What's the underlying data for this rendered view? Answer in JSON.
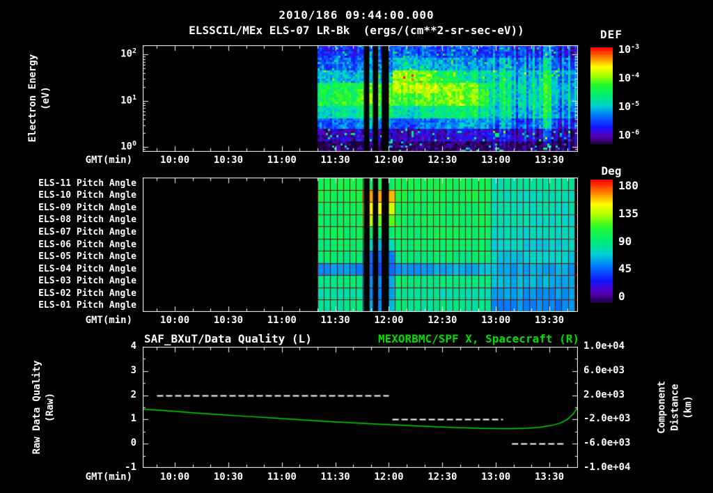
{
  "header": {
    "timestamp": "2010/186 09:44:00.000",
    "title": "ELSSCIL/MEx ELS-07 LR-Bk  (ergs/(cm**2-sr-sec-eV))"
  },
  "colors": {
    "background": "#000000",
    "text": "#ffffff",
    "series_green": "#00dd00",
    "heatmap_grid_red": "#6f1400",
    "quality_dash_white": "#ffffff"
  },
  "time_axis": {
    "label": "GMT(min)",
    "start_min": 582,
    "end_min": 826,
    "minor_tick_step_min": 10,
    "ticks": [
      {
        "min": 600,
        "label": "10:00"
      },
      {
        "min": 630,
        "label": "10:30"
      },
      {
        "min": 660,
        "label": "11:00"
      },
      {
        "min": 690,
        "label": "11:30"
      },
      {
        "min": 720,
        "label": "12:00"
      },
      {
        "min": 750,
        "label": "12:30"
      },
      {
        "min": 780,
        "label": "13:00"
      },
      {
        "min": 810,
        "label": "13:30"
      }
    ]
  },
  "panels": {
    "spectrogram": {
      "y_axis_label": "Electron Energy\n(eV)",
      "y_log_range": [
        -0.1,
        2.2
      ],
      "y_ticks": [
        {
          "log": 0,
          "base": "10",
          "exp": "0"
        },
        {
          "log": 1,
          "base": "10",
          "exp": "1"
        },
        {
          "log": 2,
          "base": "10",
          "exp": "2"
        }
      ]
    },
    "pitch": {
      "row_labels": [
        "ELS-11 Pitch Angle",
        "ELS-10 Pitch Angle",
        "ELS-09 Pitch Angle",
        "ELS-08 Pitch Angle",
        "ELS-07 Pitch Angle",
        "ELS-06 Pitch Angle",
        "ELS-05 Pitch Angle",
        "ELS-04 Pitch Angle",
        "ELS-03 Pitch Angle",
        "ELS-02 Pitch Angle",
        "ELS-01 Pitch Angle"
      ]
    },
    "bottom": {
      "left_title": "SAF_BXuT/Data Quality (L)",
      "right_title": "MEXORBMC/SPF X, Spacecraft (R)",
      "left_axis_label": "Raw Data Quality\n(Raw)",
      "right_axis_label": "Component Distance\n(km)",
      "left_range": [
        -1,
        4
      ],
      "right_range_km": [
        -10000,
        10000
      ],
      "left_ticks": [
        {
          "value": 4,
          "label": "4"
        },
        {
          "value": 3,
          "label": "3"
        },
        {
          "value": 2,
          "label": "2"
        },
        {
          "value": 1,
          "label": "1"
        },
        {
          "value": 0,
          "label": "0"
        },
        {
          "value": -1,
          "label": "-1"
        }
      ],
      "right_ticks": [
        {
          "km": 10000,
          "label": "1.0e+04"
        },
        {
          "km": 6000,
          "label": "6.0e+03"
        },
        {
          "km": 2000,
          "label": "2.0e+03"
        },
        {
          "km": -2000,
          "label": "-2.0e+03"
        },
        {
          "km": -6000,
          "label": "-6.0e+03"
        },
        {
          "km": -10000,
          "label": "-1.0e+04"
        }
      ]
    }
  },
  "colorbars": {
    "def": {
      "title": "DEF",
      "log_range": [
        -6.3,
        -2.9
      ],
      "ticks": [
        {
          "log": -3,
          "base": "10",
          "exp": "-3"
        },
        {
          "log": -4,
          "base": "10",
          "exp": "-4"
        },
        {
          "log": -5,
          "base": "10",
          "exp": "-5"
        },
        {
          "log": -6,
          "base": "10",
          "exp": "-6"
        }
      ]
    },
    "deg": {
      "title": "Deg",
      "value_range": [
        -10,
        190
      ],
      "ticks": [
        {
          "value": 180,
          "label": "180"
        },
        {
          "value": 135,
          "label": "135"
        },
        {
          "value": 90,
          "label": "90"
        },
        {
          "value": 45,
          "label": "45"
        },
        {
          "value": 0,
          "label": "0"
        }
      ]
    }
  },
  "chart_data": [
    {
      "type": "heatmap",
      "name": "electron_energy_spectrogram",
      "title": "ELSSCIL/MEx ELS-07 LR-Bk",
      "units": "ergs/(cm**2-sr-sec-eV)",
      "xlabel": "GMT(min)",
      "ylabel": "Electron Energy (eV)",
      "x_range_min": [
        582,
        826
      ],
      "y_log10_ev_range": [
        -0.1,
        2.2
      ],
      "color_scale_log10": [
        -6.3,
        -2.9
      ],
      "data_start_min": 680,
      "data_end_min": 824,
      "gaps_min": [
        [
          706,
          709
        ],
        [
          711,
          714
        ],
        [
          716,
          720
        ]
      ],
      "bin_width_min": 6,
      "t_bin_start_min": [
        680,
        686,
        692,
        698,
        704,
        710,
        716,
        722,
        728,
        734,
        740,
        746,
        752,
        758,
        764,
        770,
        776,
        782,
        788,
        794,
        800,
        806,
        812,
        818
      ],
      "energy_rows_log10_ev_bottom_to_top": [
        0.03,
        0.28,
        0.54,
        0.79,
        1.05,
        1.3,
        1.56,
        1.82,
        2.07
      ],
      "log10_def_columns": [
        [
          -6.3,
          -6.0,
          -5.4,
          -4.8,
          -4.4,
          -4.4,
          -5.0,
          -5.4,
          -5.6
        ],
        [
          -6.3,
          -6.0,
          -5.4,
          -4.8,
          -4.4,
          -4.4,
          -5.0,
          -5.4,
          -5.6
        ],
        [
          -6.3,
          -5.9,
          -5.3,
          -4.7,
          -4.3,
          -4.4,
          -5.1,
          -5.4,
          -5.6
        ],
        [
          -6.3,
          -5.9,
          -5.3,
          -4.7,
          -4.3,
          -4.4,
          -5.1,
          -5.4,
          -5.6
        ],
        [
          -6.2,
          -5.9,
          -5.2,
          -4.5,
          -4.1,
          -4.2,
          -5.0,
          -5.3,
          -5.5
        ],
        [
          -6.2,
          -5.9,
          -5.2,
          -4.5,
          -4.1,
          -4.2,
          -5.0,
          -5.3,
          -5.5
        ],
        [
          -6.2,
          -5.9,
          -5.2,
          -4.5,
          -4.1,
          -4.2,
          -5.0,
          -5.3,
          -5.5
        ],
        [
          -6.2,
          -5.9,
          -5.4,
          -4.8,
          -4.2,
          -3.8,
          -3.9,
          -4.9,
          -5.4
        ],
        [
          -6.2,
          -5.9,
          -5.4,
          -4.8,
          -4.2,
          -3.8,
          -3.9,
          -4.9,
          -5.4
        ],
        [
          -6.2,
          -5.9,
          -5.3,
          -4.7,
          -4.1,
          -3.8,
          -4.1,
          -5.0,
          -5.4
        ],
        [
          -6.2,
          -5.9,
          -5.3,
          -4.7,
          -4.1,
          -3.8,
          -4.1,
          -5.0,
          -5.4
        ],
        [
          -6.2,
          -5.9,
          -5.2,
          -4.6,
          -4.0,
          -3.9,
          -4.4,
          -5.1,
          -5.5
        ],
        [
          -6.2,
          -5.9,
          -5.2,
          -4.6,
          -4.0,
          -3.9,
          -4.4,
          -5.1,
          -5.5
        ],
        [
          -6.2,
          -5.8,
          -5.1,
          -4.5,
          -4.0,
          -4.0,
          -4.7,
          -5.2,
          -5.5
        ],
        [
          -6.2,
          -5.8,
          -5.1,
          -4.5,
          -4.0,
          -4.0,
          -4.7,
          -5.2,
          -5.5
        ],
        [
          -6.3,
          -5.9,
          -5.2,
          -4.7,
          -4.3,
          -4.4,
          -4.9,
          -5.3,
          -5.6
        ],
        [
          -6.3,
          -5.9,
          -5.5,
          -5.1,
          -4.9,
          -4.9,
          -5.0,
          -5.3,
          -5.6
        ],
        [
          -6.2,
          -5.7,
          -5.0,
          -4.6,
          -4.5,
          -4.5,
          -4.6,
          -5.0,
          -5.4
        ],
        [
          -6.3,
          -5.9,
          -5.5,
          -5.1,
          -4.9,
          -4.9,
          -5.0,
          -5.3,
          -5.6
        ],
        [
          -6.3,
          -5.9,
          -5.5,
          -5.1,
          -4.9,
          -4.9,
          -5.0,
          -5.3,
          -5.6
        ],
        [
          -6.2,
          -5.7,
          -5.0,
          -4.6,
          -4.5,
          -4.5,
          -4.6,
          -5.0,
          -5.4
        ],
        [
          -6.2,
          -5.7,
          -5.0,
          -4.6,
          -4.5,
          -4.5,
          -4.6,
          -5.0,
          -5.4
        ],
        [
          -6.3,
          -5.9,
          -5.5,
          -5.1,
          -4.9,
          -4.9,
          -5.0,
          -5.3,
          -5.6
        ],
        [
          -6.3,
          -5.9,
          -5.5,
          -5.1,
          -4.9,
          -4.9,
          -5.0,
          -5.3,
          -5.6
        ]
      ]
    },
    {
      "type": "heatmap",
      "name": "pitch_angle_panels",
      "units": "Deg",
      "value_range_deg": [
        0,
        180
      ],
      "rows_top_to_bottom": [
        "ELS-11",
        "ELS-10",
        "ELS-09",
        "ELS-08",
        "ELS-07",
        "ELS-06",
        "ELS-05",
        "ELS-04",
        "ELS-03",
        "ELS-02",
        "ELS-01"
      ],
      "data_start_min": 680,
      "data_end_min": 824,
      "gaps_min": [
        [
          706,
          709
        ],
        [
          711,
          714
        ],
        [
          716,
          720
        ]
      ],
      "bin_width_min": 6,
      "t_bin_start_min": [
        680,
        686,
        692,
        698,
        704,
        710,
        716,
        722,
        728,
        734,
        740,
        746,
        752,
        758,
        764,
        770,
        776,
        782,
        788,
        794,
        800,
        806,
        812,
        818
      ],
      "pitch_deg_rows": [
        [
          100,
          100,
          100,
          100,
          100,
          100,
          100,
          100,
          100,
          100,
          100,
          100,
          100,
          100,
          100,
          100,
          80,
          80,
          80,
          80,
          80,
          80,
          80,
          80
        ],
        [
          100,
          100,
          100,
          100,
          165,
          165,
          160,
          105,
          100,
          100,
          100,
          100,
          100,
          100,
          100,
          100,
          80,
          78,
          78,
          78,
          78,
          78,
          78,
          78
        ],
        [
          95,
          95,
          95,
          95,
          150,
          145,
          140,
          100,
          95,
          95,
          95,
          95,
          95,
          95,
          95,
          95,
          78,
          76,
          76,
          76,
          76,
          76,
          76,
          76
        ],
        [
          95,
          95,
          95,
          95,
          130,
          125,
          120,
          100,
          95,
          95,
          95,
          95,
          95,
          95,
          95,
          95,
          75,
          75,
          75,
          75,
          75,
          75,
          75,
          75
        ],
        [
          95,
          95,
          95,
          95,
          95,
          90,
          95,
          95,
          95,
          95,
          95,
          95,
          95,
          95,
          95,
          95,
          75,
          73,
          73,
          73,
          73,
          73,
          73,
          73
        ],
        [
          92,
          92,
          92,
          92,
          70,
          65,
          70,
          92,
          92,
          92,
          92,
          92,
          92,
          92,
          92,
          92,
          72,
          70,
          70,
          70,
          70,
          70,
          70,
          70
        ],
        [
          90,
          90,
          90,
          90,
          50,
          45,
          50,
          90,
          90,
          90,
          90,
          90,
          90,
          90,
          90,
          90,
          70,
          68,
          68,
          68,
          68,
          68,
          68,
          68
        ],
        [
          55,
          55,
          55,
          55,
          45,
          40,
          45,
          55,
          55,
          58,
          60,
          60,
          62,
          62,
          65,
          65,
          62,
          60,
          60,
          60,
          60,
          60,
          60,
          60
        ],
        [
          88,
          88,
          88,
          88,
          60,
          55,
          60,
          88,
          88,
          88,
          88,
          88,
          88,
          88,
          88,
          88,
          65,
          63,
          63,
          63,
          63,
          63,
          63,
          63
        ],
        [
          80,
          80,
          80,
          80,
          55,
          50,
          55,
          80,
          80,
          80,
          80,
          80,
          80,
          80,
          80,
          80,
          60,
          58,
          58,
          58,
          58,
          58,
          58,
          58
        ],
        [
          85,
          85,
          85,
          85,
          60,
          55,
          60,
          85,
          85,
          85,
          85,
          85,
          85,
          85,
          85,
          85,
          55,
          53,
          53,
          53,
          53,
          53,
          53,
          53
        ]
      ]
    },
    {
      "type": "line",
      "name": "quality_and_spacecraft_x",
      "xlabel": "GMT(min)",
      "series": [
        {
          "name": "SAF_BXuT/Data Quality (L)",
          "axis": "left",
          "style": "dashed",
          "color": "#ffffff",
          "segments": [
            {
              "t_min": [
                590,
                720
              ],
              "value": 2
            },
            {
              "t_min": [
                722,
                784
              ],
              "value": 1
            },
            {
              "t_min": [
                789,
                819
              ],
              "value": 0
            }
          ]
        },
        {
          "name": "MEXORBMC/SPF X, Spacecraft (R)",
          "axis": "right",
          "style": "solid",
          "color": "#00dd00",
          "t_min": [
            582,
            595,
            610,
            625,
            640,
            655,
            670,
            685,
            700,
            715,
            730,
            745,
            760,
            772,
            782,
            790,
            798,
            805,
            811,
            816,
            820,
            823,
            826
          ],
          "x_km": [
            -320,
            -560,
            -880,
            -1200,
            -1480,
            -1760,
            -2040,
            -2320,
            -2560,
            -2800,
            -3000,
            -3200,
            -3360,
            -3480,
            -3520,
            -3520,
            -3440,
            -3280,
            -3000,
            -2600,
            -2000,
            -1200,
            0
          ]
        }
      ]
    }
  ]
}
